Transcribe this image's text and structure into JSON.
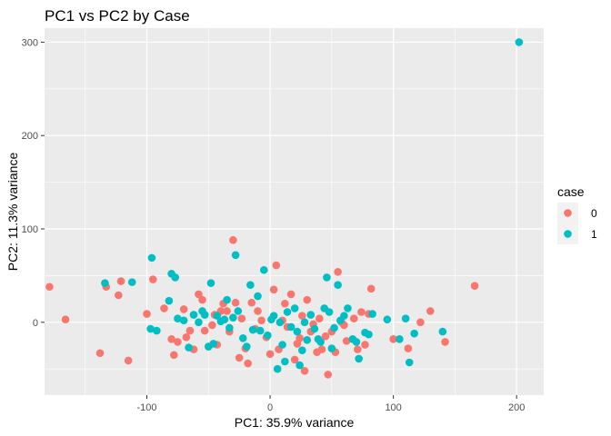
{
  "chart_data": {
    "type": "scatter",
    "title": "PC1 vs PC2 by Case",
    "xlabel": "PC1: 35.9% variance",
    "ylabel": "PC2: 11.3% variance",
    "xlim": [
      -183,
      222
    ],
    "ylim": [
      -78,
      315
    ],
    "x_ticks": [
      -100,
      0,
      100,
      200
    ],
    "y_ticks": [
      0,
      100,
      200,
      300
    ],
    "grid": true,
    "legend": {
      "title": "case",
      "placement": "right"
    },
    "series": [
      {
        "name": "0",
        "color": "#F8766D",
        "points": [
          [
            -179,
            38
          ],
          [
            -166,
            3
          ],
          [
            -138,
            -33
          ],
          [
            -133,
            38
          ],
          [
            -121,
            44
          ],
          [
            -123,
            29
          ],
          [
            -115,
            -41
          ],
          [
            -100,
            9
          ],
          [
            -95,
            46
          ],
          [
            -86,
            15
          ],
          [
            -80,
            -18
          ],
          [
            -78,
            -35
          ],
          [
            -75,
            -21
          ],
          [
            -70,
            14
          ],
          [
            -68,
            -16
          ],
          [
            -65,
            -9
          ],
          [
            -62,
            -29
          ],
          [
            -58,
            30
          ],
          [
            -55,
            24
          ],
          [
            -53,
            -9
          ],
          [
            -50,
            -26
          ],
          [
            -47,
            -3
          ],
          [
            -45,
            8
          ],
          [
            -43,
            -24
          ],
          [
            -40,
            12
          ],
          [
            -38,
            20
          ],
          [
            -35,
            12
          ],
          [
            -33,
            -10
          ],
          [
            -30,
            88
          ],
          [
            -28,
            21
          ],
          [
            -25,
            -38
          ],
          [
            -23,
            4
          ],
          [
            -20,
            -28
          ],
          [
            -18,
            -44
          ],
          [
            -15,
            21
          ],
          [
            -12,
            -7
          ],
          [
            -10,
            12
          ],
          [
            -7,
            2
          ],
          [
            -3,
            -16
          ],
          [
            0,
            -34
          ],
          [
            3,
            35
          ],
          [
            5,
            61
          ],
          [
            7,
            -29
          ],
          [
            10,
            2
          ],
          [
            12,
            20
          ],
          [
            14,
            -5
          ],
          [
            17,
            30
          ],
          [
            20,
            -40
          ],
          [
            22,
            -23
          ],
          [
            24,
            -17
          ],
          [
            26,
            7
          ],
          [
            28,
            -52
          ],
          [
            30,
            24
          ],
          [
            33,
            -10
          ],
          [
            35,
            -2
          ],
          [
            38,
            -32
          ],
          [
            40,
            4
          ],
          [
            42,
            -29
          ],
          [
            45,
            -15
          ],
          [
            47,
            -56
          ],
          [
            50,
            -10
          ],
          [
            53,
            -32
          ],
          [
            55,
            54
          ],
          [
            58,
            0
          ],
          [
            60,
            -3
          ],
          [
            62,
            -20
          ],
          [
            68,
            4
          ],
          [
            71,
            -29
          ],
          [
            74,
            11
          ],
          [
            77,
            -24
          ],
          [
            80,
            9
          ],
          [
            82,
            36
          ],
          [
            100,
            -18
          ],
          [
            122,
            0
          ],
          [
            130,
            12
          ],
          [
            112,
            -28
          ],
          [
            142,
            -21
          ],
          [
            166,
            39
          ]
        ]
      },
      {
        "name": "1",
        "color": "#00BFC4",
        "points": [
          [
            -134,
            42
          ],
          [
            -112,
            43
          ],
          [
            -96,
            69
          ],
          [
            -97,
            -7
          ],
          [
            -92,
            -9
          ],
          [
            -82,
            23
          ],
          [
            -80,
            52
          ],
          [
            -77,
            48
          ],
          [
            -75,
            4
          ],
          [
            -70,
            2
          ],
          [
            -66,
            -27
          ],
          [
            -62,
            8
          ],
          [
            -58,
            0
          ],
          [
            -55,
            12
          ],
          [
            -53,
            8
          ],
          [
            -50,
            -26
          ],
          [
            -48,
            42
          ],
          [
            -46,
            -23
          ],
          [
            -43,
            7
          ],
          [
            -40,
            1
          ],
          [
            -37,
            3
          ],
          [
            -35,
            24
          ],
          [
            -33,
            -6
          ],
          [
            -30,
            5
          ],
          [
            -28,
            72
          ],
          [
            -26,
            12
          ],
          [
            -22,
            -17
          ],
          [
            -19,
            -26
          ],
          [
            -16,
            40
          ],
          [
            -14,
            -8
          ],
          [
            -10,
            28
          ],
          [
            -8,
            -9
          ],
          [
            -5,
            56
          ],
          [
            -2,
            -14
          ],
          [
            1,
            3
          ],
          [
            3,
            7
          ],
          [
            6,
            -50
          ],
          [
            8,
            0
          ],
          [
            10,
            -24
          ],
          [
            12,
            -42
          ],
          [
            14,
            11
          ],
          [
            17,
            -5
          ],
          [
            20,
            15
          ],
          [
            22,
            -10
          ],
          [
            24,
            -46
          ],
          [
            26,
            -30
          ],
          [
            28,
            0
          ],
          [
            30,
            -19
          ],
          [
            33,
            8
          ],
          [
            36,
            -7
          ],
          [
            39,
            -18
          ],
          [
            41,
            -21
          ],
          [
            44,
            15
          ],
          [
            46,
            48
          ],
          [
            48,
            11
          ],
          [
            50,
            -28
          ],
          [
            52,
            -6
          ],
          [
            55,
            40
          ],
          [
            57,
            2
          ],
          [
            60,
            7
          ],
          [
            63,
            15
          ],
          [
            67,
            -18
          ],
          [
            70,
            -21
          ],
          [
            72,
            -39
          ],
          [
            77,
            -11
          ],
          [
            80,
            -13
          ],
          [
            83,
            9
          ],
          [
            95,
            3
          ],
          [
            105,
            -18
          ],
          [
            110,
            4
          ],
          [
            113,
            -43
          ],
          [
            117,
            -12
          ],
          [
            140,
            -10
          ],
          [
            202,
            300
          ]
        ]
      }
    ]
  }
}
